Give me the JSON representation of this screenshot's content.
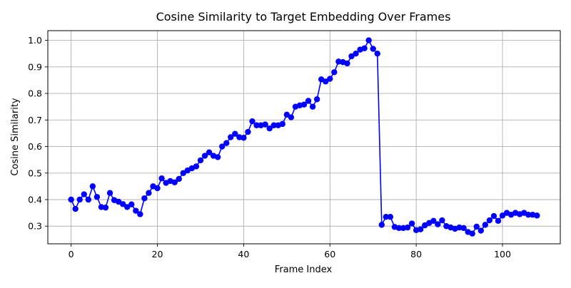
{
  "chart_data": {
    "type": "line",
    "title": "Cosine Similarity to Target Embedding Over Frames",
    "xlabel": "Frame Index",
    "ylabel": "Cosine Similarity",
    "xlim": [
      -5.4,
      113.4
    ],
    "ylim": [
      0.2335,
      1.0365
    ],
    "xticks": [
      0,
      20,
      40,
      60,
      80,
      100
    ],
    "yticks": [
      0.3,
      0.4,
      0.5,
      0.6,
      0.7,
      0.8,
      0.9,
      1.0
    ],
    "xtick_labels": [
      "0",
      "20",
      "40",
      "60",
      "80",
      "100"
    ],
    "ytick_labels": [
      "0.3",
      "0.4",
      "0.5",
      "0.6",
      "0.7",
      "0.8",
      "0.9",
      "1.0"
    ],
    "grid": true,
    "line_color": "#0000ff",
    "marker": "circle",
    "series": [
      {
        "x": [
          0,
          1,
          2,
          3,
          4,
          5,
          6,
          7,
          8,
          9,
          10,
          11,
          12,
          13,
          14,
          15,
          16,
          17,
          18,
          19,
          20,
          21,
          22,
          23,
          24,
          25,
          26,
          27,
          28,
          29,
          30,
          31,
          32,
          33,
          34,
          35,
          36,
          37,
          38,
          39,
          40,
          41,
          42,
          43,
          44,
          45,
          46,
          47,
          48,
          49,
          50,
          51,
          52,
          53,
          54,
          55,
          56,
          57,
          58,
          59,
          60,
          61,
          62,
          63,
          64,
          65,
          66,
          67,
          68,
          69,
          70,
          71,
          72,
          73,
          74,
          75,
          76,
          77,
          78,
          79,
          80,
          81,
          82,
          83,
          84,
          85,
          86,
          87,
          88,
          89,
          90,
          91,
          92,
          93,
          94,
          95,
          96,
          97,
          98,
          99,
          100,
          101,
          102,
          103,
          104,
          105,
          106,
          107,
          108
        ],
        "y": [
          0.4,
          0.365,
          0.4,
          0.42,
          0.4,
          0.45,
          0.41,
          0.372,
          0.37,
          0.425,
          0.398,
          0.392,
          0.383,
          0.372,
          0.382,
          0.358,
          0.345,
          0.405,
          0.425,
          0.45,
          0.443,
          0.48,
          0.463,
          0.47,
          0.465,
          0.478,
          0.5,
          0.51,
          0.518,
          0.525,
          0.548,
          0.565,
          0.578,
          0.565,
          0.56,
          0.6,
          0.613,
          0.635,
          0.648,
          0.635,
          0.633,
          0.655,
          0.695,
          0.68,
          0.68,
          0.683,
          0.668,
          0.68,
          0.68,
          0.685,
          0.72,
          0.71,
          0.75,
          0.755,
          0.758,
          0.772,
          0.75,
          0.778,
          0.853,
          0.845,
          0.855,
          0.88,
          0.92,
          0.918,
          0.913,
          0.94,
          0.95,
          0.965,
          0.97,
          1.0,
          0.968,
          0.95,
          0.305,
          0.335,
          0.335,
          0.297,
          0.293,
          0.293,
          0.295,
          0.31,
          0.285,
          0.288,
          0.303,
          0.312,
          0.32,
          0.307,
          0.322,
          0.3,
          0.295,
          0.29,
          0.295,
          0.293,
          0.278,
          0.272,
          0.298,
          0.283,
          0.305,
          0.322,
          0.338,
          0.32,
          0.34,
          0.35,
          0.343,
          0.35,
          0.345,
          0.35,
          0.343,
          0.343,
          0.34
        ]
      }
    ]
  }
}
